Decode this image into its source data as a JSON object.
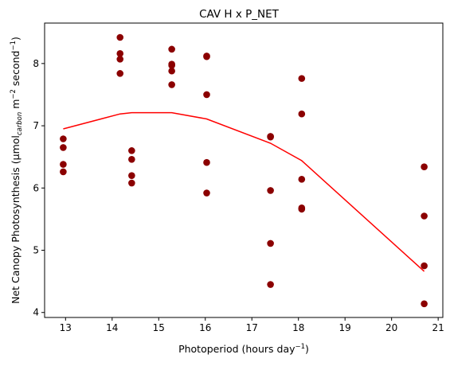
{
  "chart_data": {
    "type": "scatter",
    "title": "CAV H x P_NET",
    "xlabel": {
      "main": "Photoperiod (hours day",
      "sup": "−1",
      "end": ")"
    },
    "ylabel": {
      "a": "Net Canopy Photosynthesis (µmol",
      "sub": "carbon",
      "b": " m",
      "sup1": "−2",
      "c": " second",
      "sup2": "−1",
      "d": ")"
    },
    "xlim": [
      12.55,
      21.1
    ],
    "ylim": [
      3.92,
      8.65
    ],
    "xticks": [
      13,
      14,
      15,
      16,
      17,
      18,
      19,
      20,
      21
    ],
    "xtick_labels": [
      "13",
      "14",
      "15",
      "16",
      "17",
      "18",
      "19",
      "20",
      "21"
    ],
    "yticks": [
      4,
      5,
      6,
      7,
      8
    ],
    "ytick_labels": [
      "4",
      "5",
      "6",
      "7",
      "8"
    ],
    "grid": false,
    "colors": {
      "points": "#8b0000",
      "line": "#ff0000"
    },
    "points": [
      {
        "x": 12.95,
        "y": 6.79
      },
      {
        "x": 12.95,
        "y": 6.65
      },
      {
        "x": 12.95,
        "y": 6.38
      },
      {
        "x": 12.95,
        "y": 6.26
      },
      {
        "x": 14.17,
        "y": 8.42
      },
      {
        "x": 14.17,
        "y": 8.16
      },
      {
        "x": 14.17,
        "y": 8.07
      },
      {
        "x": 14.17,
        "y": 7.84
      },
      {
        "x": 14.42,
        "y": 6.6
      },
      {
        "x": 14.42,
        "y": 6.46
      },
      {
        "x": 14.42,
        "y": 6.2
      },
      {
        "x": 14.42,
        "y": 6.08
      },
      {
        "x": 15.28,
        "y": 8.23
      },
      {
        "x": 15.28,
        "y": 7.99
      },
      {
        "x": 15.28,
        "y": 7.97
      },
      {
        "x": 15.28,
        "y": 7.88
      },
      {
        "x": 15.28,
        "y": 7.66
      },
      {
        "x": 16.03,
        "y": 8.12
      },
      {
        "x": 16.03,
        "y": 8.11
      },
      {
        "x": 16.03,
        "y": 7.5
      },
      {
        "x": 16.03,
        "y": 6.41
      },
      {
        "x": 16.03,
        "y": 5.92
      },
      {
        "x": 17.4,
        "y": 6.83
      },
      {
        "x": 17.4,
        "y": 6.82
      },
      {
        "x": 17.4,
        "y": 5.96
      },
      {
        "x": 17.4,
        "y": 5.11
      },
      {
        "x": 17.4,
        "y": 4.45
      },
      {
        "x": 18.07,
        "y": 7.76
      },
      {
        "x": 18.07,
        "y": 7.19
      },
      {
        "x": 18.07,
        "y": 6.14
      },
      {
        "x": 18.07,
        "y": 5.68
      },
      {
        "x": 18.07,
        "y": 5.66
      },
      {
        "x": 20.7,
        "y": 6.34
      },
      {
        "x": 20.7,
        "y": 5.55
      },
      {
        "x": 20.7,
        "y": 4.75
      },
      {
        "x": 20.7,
        "y": 4.14
      }
    ],
    "fit_line": {
      "x": [
        12.95,
        14.17,
        14.42,
        15.28,
        16.03,
        17.4,
        18.07,
        20.7
      ],
      "y": [
        6.95,
        7.19,
        7.21,
        7.21,
        7.11,
        6.72,
        6.44,
        4.66
      ]
    }
  }
}
